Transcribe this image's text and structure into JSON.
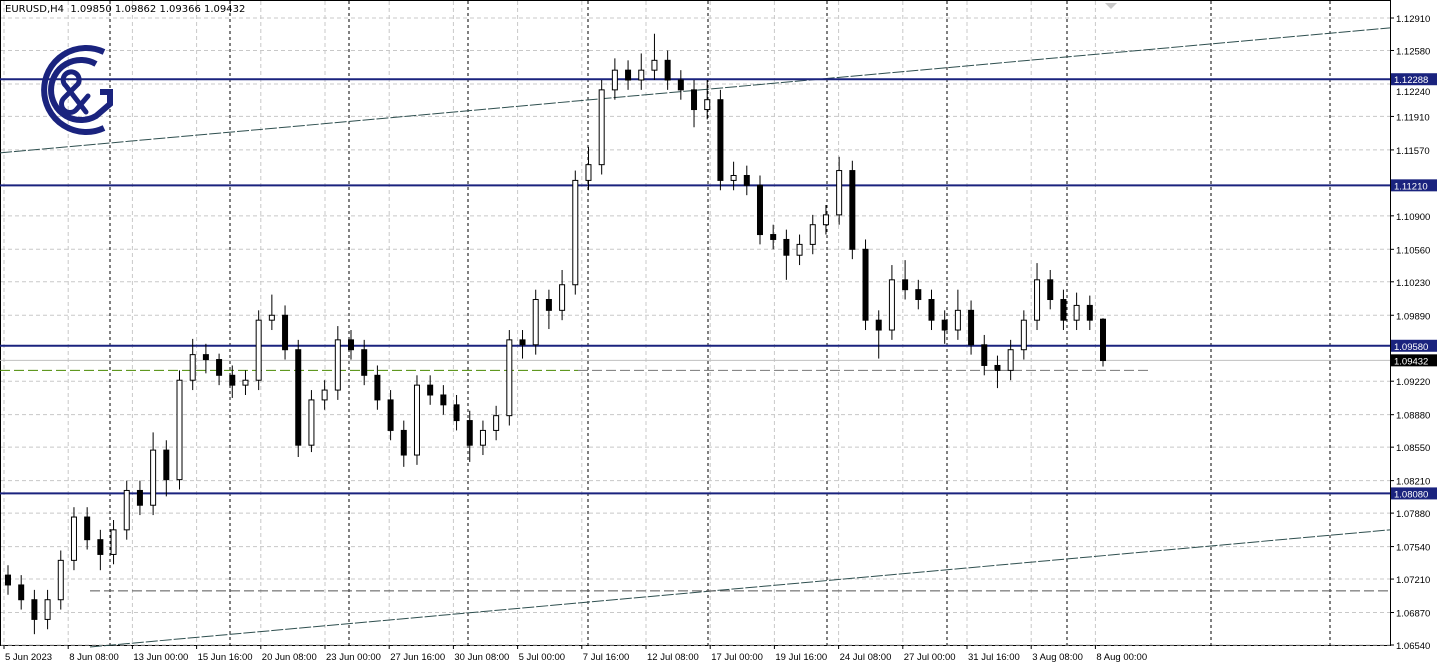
{
  "header": {
    "symbol": "EURUSD,H4",
    "open": "1.09850",
    "high": "1.09862",
    "low": "1.09366",
    "close": "1.09432"
  },
  "logo": {
    "text": "G&G",
    "color": "#1a237e"
  },
  "colors": {
    "level": "#1a237e",
    "bid": "#c0c0c0",
    "green_dash": "#4a8a00",
    "trend": "#2f4f4f",
    "grid": "#c8c8c8",
    "candle": "#000000"
  },
  "chart_data": {
    "type": "candlestick",
    "symbol": "EURUSD",
    "timeframe": "H4",
    "ylim": [
      1.0654,
      1.1291
    ],
    "y_ticks": [
      "1.12910",
      "1.12580",
      "1.12240",
      "1.11910",
      "1.11570",
      "1.10900",
      "1.10560",
      "1.10230",
      "1.09890",
      "1.09220",
      "1.08880",
      "1.08550",
      "1.08210",
      "1.07880",
      "1.07540",
      "1.07210",
      "1.06870",
      "1.06540"
    ],
    "x_ticks": [
      "5 Jun 2023",
      "8 Jun 08:00",
      "13 Jun 00:00",
      "15 Jun 16:00",
      "20 Jun 08:00",
      "23 Jun 00:00",
      "27 Jun 16:00",
      "30 Jun 08:00",
      "5 Jul 00:00",
      "7 Jul 16:00",
      "12 Jul 08:00",
      "17 Jul 00:00",
      "19 Jul 16:00",
      "24 Jul 08:00",
      "27 Jul 00:00",
      "31 Jul 16:00",
      "3 Aug 08:00",
      "8 Aug 00:00"
    ],
    "levels": [
      {
        "price": 1.12288,
        "label": "1.12288"
      },
      {
        "price": 1.1121,
        "label": "1.11210"
      },
      {
        "price": 1.0958,
        "label": "1.09580"
      },
      {
        "price": 1.0808,
        "label": "1.08080"
      }
    ],
    "bid": {
      "price": 1.09432,
      "label": "1.09432"
    },
    "dashed_levels": [
      1.0933,
      1.0709
    ],
    "trend_lines": [
      {
        "start_price": 1.1154,
        "end_price": 1.1281
      },
      {
        "start_price": 1.0652,
        "end_price": 1.0771
      }
    ],
    "candles": [
      [
        1.0725,
        1.0735,
        1.0705,
        1.0715
      ],
      [
        1.0715,
        1.0725,
        1.069,
        1.07
      ],
      [
        1.07,
        1.071,
        1.0665,
        1.068
      ],
      [
        1.068,
        1.071,
        1.067,
        1.07
      ],
      [
        1.07,
        1.075,
        1.069,
        1.074
      ],
      [
        1.074,
        1.0794,
        1.073,
        1.0784
      ],
      [
        1.0784,
        1.0794,
        1.0751,
        1.0761
      ],
      [
        1.0761,
        1.0771,
        1.073,
        1.0746
      ],
      [
        1.0746,
        1.0781,
        1.0736,
        1.0771
      ],
      [
        1.0771,
        1.0821,
        1.0761,
        1.0811
      ],
      [
        1.0811,
        1.0821,
        1.0786,
        1.0796
      ],
      [
        1.0796,
        1.087,
        1.0786,
        1.0852
      ],
      [
        1.0852,
        1.0862,
        1.0805,
        1.0822
      ],
      [
        1.0822,
        1.0933,
        1.0812,
        1.0923
      ],
      [
        1.0923,
        1.0965,
        1.0913,
        1.0949
      ],
      [
        1.0949,
        1.096,
        1.093,
        1.0944
      ],
      [
        1.0944,
        1.095,
        1.0918,
        1.0928
      ],
      [
        1.0928,
        1.0938,
        1.0905,
        1.0918
      ],
      [
        1.0918,
        1.0933,
        1.0908,
        1.0923
      ],
      [
        1.0923,
        1.0994,
        1.0913,
        1.0984
      ],
      [
        1.0984,
        1.101,
        1.0974,
        1.0989
      ],
      [
        1.0989,
        1.0999,
        1.0944,
        1.0954
      ],
      [
        1.0954,
        1.0964,
        1.0845,
        1.0857
      ],
      [
        1.0857,
        1.0913,
        1.085,
        1.0903
      ],
      [
        1.0903,
        1.0923,
        1.0893,
        1.0913
      ],
      [
        1.0913,
        1.0978,
        1.0903,
        1.0964
      ],
      [
        1.0964,
        1.0974,
        1.0944,
        1.0954
      ],
      [
        1.0954,
        1.0964,
        1.0918,
        1.0928
      ],
      [
        1.0928,
        1.0938,
        1.0893,
        1.0903
      ],
      [
        1.0903,
        1.0913,
        1.0862,
        1.0872
      ],
      [
        1.0872,
        1.0882,
        1.0835,
        1.0847
      ],
      [
        1.0847,
        1.0928,
        1.0837,
        1.0918
      ],
      [
        1.0918,
        1.0928,
        1.0898,
        1.0908
      ],
      [
        1.0908,
        1.0918,
        1.0888,
        1.0898
      ],
      [
        1.0898,
        1.0908,
        1.0872,
        1.0882
      ],
      [
        1.0882,
        1.0892,
        1.084,
        1.0857
      ],
      [
        1.0857,
        1.0882,
        1.0847,
        1.0872
      ],
      [
        1.0872,
        1.0897,
        1.0862,
        1.0887
      ],
      [
        1.0887,
        1.0974,
        1.0877,
        1.0964
      ],
      [
        1.0964,
        1.0974,
        1.0945,
        1.0959
      ],
      [
        1.0959,
        1.1015,
        1.0949,
        1.1005
      ],
      [
        1.1005,
        1.1015,
        1.0975,
        1.0994
      ],
      [
        1.0994,
        1.1035,
        1.0984,
        1.102
      ],
      [
        1.102,
        1.1136,
        1.101,
        1.1126
      ],
      [
        1.1126,
        1.116,
        1.1116,
        1.1142
      ],
      [
        1.1142,
        1.1228,
        1.1132,
        1.1218
      ],
      [
        1.1218,
        1.125,
        1.1208,
        1.1238
      ],
      [
        1.1238,
        1.1248,
        1.1218,
        1.1228
      ],
      [
        1.1228,
        1.1255,
        1.1218,
        1.1238
      ],
      [
        1.1238,
        1.1275,
        1.1228,
        1.1248
      ],
      [
        1.1248,
        1.1258,
        1.1218,
        1.1228
      ],
      [
        1.1228,
        1.1238,
        1.1208,
        1.1218
      ],
      [
        1.1218,
        1.1228,
        1.118,
        1.1198
      ],
      [
        1.1198,
        1.1228,
        1.1188,
        1.1208
      ],
      [
        1.1208,
        1.1218,
        1.1116,
        1.1126
      ],
      [
        1.1126,
        1.1145,
        1.1116,
        1.1131
      ],
      [
        1.1131,
        1.1141,
        1.1111,
        1.1121
      ],
      [
        1.1121,
        1.1131,
        1.1061,
        1.1071
      ],
      [
        1.1071,
        1.1081,
        1.1056,
        1.1066
      ],
      [
        1.1066,
        1.1076,
        1.1025,
        1.105
      ],
      [
        1.105,
        1.1071,
        1.104,
        1.1061
      ],
      [
        1.1061,
        1.1091,
        1.1051,
        1.1081
      ],
      [
        1.1081,
        1.1101,
        1.1071,
        1.1091
      ],
      [
        1.1091,
        1.115,
        1.1081,
        1.1136
      ],
      [
        1.1136,
        1.1146,
        1.1046,
        1.1056
      ],
      [
        1.1056,
        1.1066,
        1.0974,
        1.0984
      ],
      [
        1.0984,
        1.0994,
        1.0945,
        1.0974
      ],
      [
        1.0974,
        1.104,
        1.0964,
        1.1025
      ],
      [
        1.1025,
        1.1045,
        1.1005,
        1.1015
      ],
      [
        1.1015,
        1.1025,
        1.0995,
        1.1005
      ],
      [
        1.1005,
        1.1015,
        1.0974,
        1.0984
      ],
      [
        1.0984,
        1.0994,
        1.096,
        1.0974
      ],
      [
        1.0974,
        1.1015,
        1.0964,
        1.0994
      ],
      [
        1.0994,
        1.1004,
        1.0949,
        1.0959
      ],
      [
        1.0959,
        1.0969,
        1.0928,
        1.0938
      ],
      [
        1.0938,
        1.0948,
        1.0915,
        1.0933
      ],
      [
        1.0933,
        1.0964,
        1.0923,
        1.0954
      ],
      [
        1.0954,
        1.0994,
        1.0944,
        1.0984
      ],
      [
        1.0984,
        1.1042,
        1.0974,
        1.1025
      ],
      [
        1.1025,
        1.1035,
        1.0995,
        1.1005
      ],
      [
        1.1005,
        1.1015,
        1.0974,
        1.0984
      ],
      [
        1.0984,
        1.1012,
        1.0974,
        1.0999
      ],
      [
        1.0999,
        1.1009,
        1.0974,
        1.0984
      ],
      [
        1.0985,
        1.0986,
        1.0937,
        1.0943
      ]
    ]
  }
}
